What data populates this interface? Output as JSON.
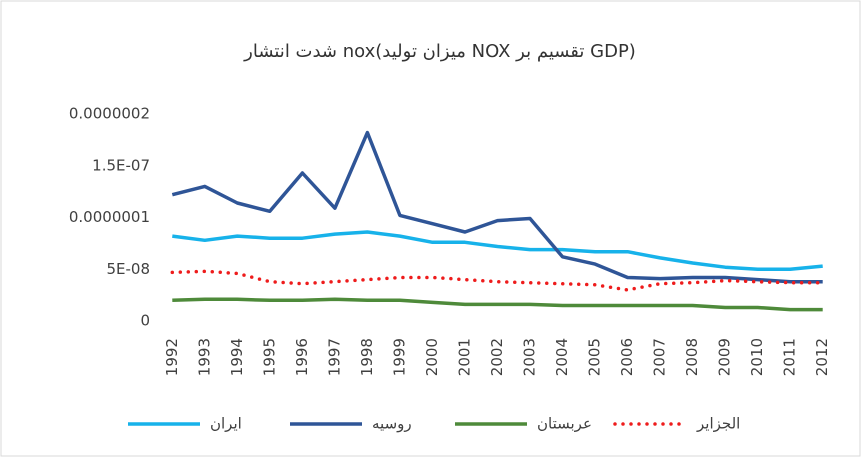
{
  "chart_data": {
    "type": "line",
    "title": "شدت انتشار nox(میزان تولید NOX تقسیم بر GDP)",
    "categories": [
      "1992",
      "1993",
      "1994",
      "1995",
      "1996",
      "1997",
      "1998",
      "1999",
      "2000",
      "2001",
      "2002",
      "2003",
      "2004",
      "2005",
      "2006",
      "2007",
      "2008",
      "2009",
      "2010",
      "2011",
      "2012"
    ],
    "series": [
      {
        "name": "ایران",
        "color": "#17b2ea",
        "style": "solid",
        "values": [
          8.2e-08,
          7.8e-08,
          8.2e-08,
          8e-08,
          8e-08,
          8.4e-08,
          8.6e-08,
          8.2e-08,
          7.6e-08,
          7.6e-08,
          7.2e-08,
          6.9e-08,
          6.9e-08,
          6.7e-08,
          6.7e-08,
          6.1e-08,
          5.6e-08,
          5.2e-08,
          5e-08,
          5e-08,
          5.3e-08
        ]
      },
      {
        "name": "روسیه",
        "color": "#2f5597",
        "style": "solid",
        "values": [
          1.22e-07,
          1.3e-07,
          1.14e-07,
          1.06e-07,
          1.43e-07,
          1.09e-07,
          1.82e-07,
          1.02e-07,
          9.4e-08,
          8.6e-08,
          9.7e-08,
          9.9e-08,
          6.2e-08,
          5.5e-08,
          4.2e-08,
          4.1e-08,
          4.2e-08,
          4.2e-08,
          4e-08,
          3.8e-08,
          3.8e-08
        ]
      },
      {
        "name": "عربستان",
        "color": "#4e8a3a",
        "style": "solid",
        "values": [
          2e-08,
          2.1e-08,
          2.1e-08,
          2e-08,
          2e-08,
          2.1e-08,
          2e-08,
          2e-08,
          1.8e-08,
          1.6e-08,
          1.6e-08,
          1.6e-08,
          1.5e-08,
          1.5e-08,
          1.5e-08,
          1.5e-08,
          1.5e-08,
          1.3e-08,
          1.3e-08,
          1.1e-08,
          1.1e-08
        ]
      },
      {
        "name": "الجزایر",
        "color": "#ee1c1c",
        "style": "dotted",
        "values": [
          4.7e-08,
          4.8e-08,
          4.6e-08,
          3.8e-08,
          3.6e-08,
          3.8e-08,
          4e-08,
          4.2e-08,
          4.2e-08,
          4e-08,
          3.8e-08,
          3.7e-08,
          3.6e-08,
          3.5e-08,
          3e-08,
          3.6e-08,
          3.7e-08,
          3.9e-08,
          3.8e-08,
          3.7e-08,
          3.7e-08
        ]
      }
    ],
    "ylim": [
      0,
      2e-07
    ],
    "yticks": [
      0,
      {
        "value": 5e-08,
        "label": "5E-08"
      },
      {
        "value": 1e-07,
        "label": "0.0000001"
      },
      {
        "value": 1.5e-07,
        "label": "1.5E-07"
      },
      {
        "value": 2e-07,
        "label": "0.0000002"
      }
    ],
    "legend": "bottom"
  }
}
